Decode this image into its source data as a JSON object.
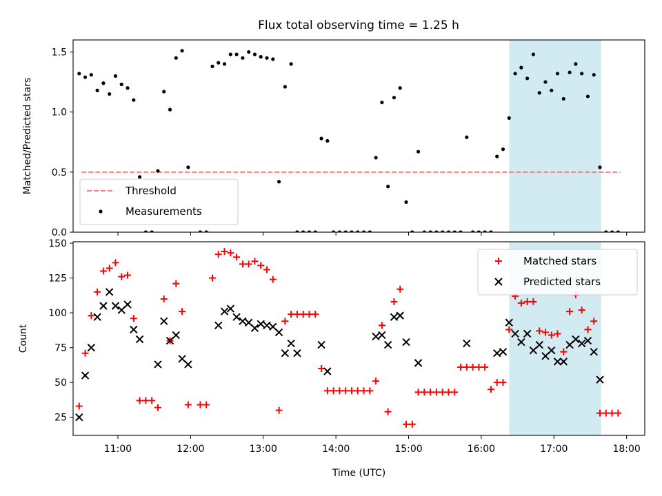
{
  "title": "Flux total observing time = 1.25 h",
  "colors": {
    "threshold": "#f08080",
    "measurements": "#000000",
    "matched": "#ff0000",
    "predicted": "#000000",
    "shade": "#add8e6"
  },
  "chart_data": [
    {
      "type": "scatter",
      "ylabel": "Matched/Predicted stars",
      "ylim": [
        0,
        1.6
      ],
      "y_ticks": [
        "0.0",
        "0.5",
        "1.0",
        "1.5"
      ],
      "xlim": [
        "10:23",
        "18:15"
      ],
      "shaded_interval": [
        "16:23",
        "17:39"
      ],
      "legend": {
        "position": "lower-left",
        "entries": [
          "Threshold",
          "Measurements"
        ]
      },
      "threshold": {
        "name": "Threshold",
        "y": 0.5,
        "x_start": "10:30",
        "x_end": "17:55"
      },
      "series": [
        {
          "name": "Measurements",
          "points": [
            [
              "10:28",
              1.32
            ],
            [
              "10:33",
              1.29
            ],
            [
              "10:38",
              1.31
            ],
            [
              "10:43",
              1.18
            ],
            [
              "10:48",
              1.24
            ],
            [
              "10:53",
              1.15
            ],
            [
              "10:58",
              1.3
            ],
            [
              "11:03",
              1.23
            ],
            [
              "11:08",
              1.2
            ],
            [
              "11:13",
              1.1
            ],
            [
              "11:18",
              0.46
            ],
            [
              "11:23",
              0.0
            ],
            [
              "11:28",
              0.0
            ],
            [
              "11:33",
              0.51
            ],
            [
              "11:38",
              1.17
            ],
            [
              "11:43",
              1.02
            ],
            [
              "11:48",
              1.45
            ],
            [
              "11:53",
              1.51
            ],
            [
              "11:58",
              0.54
            ],
            [
              "12:08",
              0.0
            ],
            [
              "12:13",
              0.0
            ],
            [
              "12:18",
              1.38
            ],
            [
              "12:23",
              1.41
            ],
            [
              "12:28",
              1.4
            ],
            [
              "12:33",
              1.48
            ],
            [
              "12:38",
              1.48
            ],
            [
              "12:43",
              1.45
            ],
            [
              "12:48",
              1.5
            ],
            [
              "12:53",
              1.48
            ],
            [
              "12:58",
              1.46
            ],
            [
              "13:03",
              1.45
            ],
            [
              "13:08",
              1.44
            ],
            [
              "13:13",
              0.42
            ],
            [
              "13:18",
              1.21
            ],
            [
              "13:23",
              1.4
            ],
            [
              "13:28",
              0.0
            ],
            [
              "13:33",
              0.0
            ],
            [
              "13:38",
              0.0
            ],
            [
              "13:43",
              0.0
            ],
            [
              "13:48",
              0.78
            ],
            [
              "13:53",
              0.76
            ],
            [
              "13:58",
              0.0
            ],
            [
              "14:03",
              0.0
            ],
            [
              "14:08",
              0.0
            ],
            [
              "14:13",
              0.0
            ],
            [
              "14:18",
              0.0
            ],
            [
              "14:23",
              0.0
            ],
            [
              "14:28",
              0.0
            ],
            [
              "14:33",
              0.62
            ],
            [
              "14:38",
              1.08
            ],
            [
              "14:43",
              0.38
            ],
            [
              "14:48",
              1.12
            ],
            [
              "14:53",
              1.2
            ],
            [
              "14:58",
              0.25
            ],
            [
              "15:03",
              0.0
            ],
            [
              "15:08",
              0.67
            ],
            [
              "15:13",
              0.0
            ],
            [
              "15:18",
              0.0
            ],
            [
              "15:23",
              0.0
            ],
            [
              "15:28",
              0.0
            ],
            [
              "15:33",
              0.0
            ],
            [
              "15:38",
              0.0
            ],
            [
              "15:43",
              0.0
            ],
            [
              "15:48",
              0.79
            ],
            [
              "15:53",
              0.0
            ],
            [
              "15:58",
              0.0
            ],
            [
              "16:03",
              0.0
            ],
            [
              "16:08",
              0.0
            ],
            [
              "16:13",
              0.63
            ],
            [
              "16:18",
              0.69
            ],
            [
              "16:23",
              0.95
            ],
            [
              "16:28",
              1.32
            ],
            [
              "16:33",
              1.37
            ],
            [
              "16:38",
              1.28
            ],
            [
              "16:43",
              1.48
            ],
            [
              "16:48",
              1.16
            ],
            [
              "16:53",
              1.25
            ],
            [
              "16:58",
              1.18
            ],
            [
              "17:03",
              1.32
            ],
            [
              "17:08",
              1.11
            ],
            [
              "17:13",
              1.33
            ],
            [
              "17:18",
              1.4
            ],
            [
              "17:23",
              1.32
            ],
            [
              "17:28",
              1.13
            ],
            [
              "17:33",
              1.31
            ],
            [
              "17:38",
              0.54
            ],
            [
              "17:43",
              0.0
            ],
            [
              "17:48",
              0.0
            ],
            [
              "17:53",
              0.0
            ]
          ]
        }
      ]
    },
    {
      "type": "scatter",
      "xlabel": "Time (UTC)",
      "ylabel": "Count",
      "ylim": [
        12,
        151
      ],
      "y_ticks": [
        "25",
        "50",
        "75",
        "100",
        "125",
        "150"
      ],
      "x_ticks": [
        "11:00",
        "12:00",
        "13:00",
        "14:00",
        "15:00",
        "16:00",
        "17:00",
        "18:00"
      ],
      "xlim": [
        "10:23",
        "18:15"
      ],
      "shaded_interval": [
        "16:23",
        "17:39"
      ],
      "legend": {
        "position": "top-right",
        "entries": [
          "Matched stars",
          "Predicted stars"
        ]
      },
      "series": [
        {
          "name": "Matched stars",
          "marker": "+",
          "points": [
            [
              "10:28",
              33
            ],
            [
              "10:33",
              71
            ],
            [
              "10:38",
              98
            ],
            [
              "10:43",
              115
            ],
            [
              "10:48",
              130
            ],
            [
              "10:53",
              132
            ],
            [
              "10:58",
              136
            ],
            [
              "11:03",
              126
            ],
            [
              "11:08",
              127
            ],
            [
              "11:13",
              96
            ],
            [
              "11:18",
              37
            ],
            [
              "11:23",
              37
            ],
            [
              "11:28",
              37
            ],
            [
              "11:33",
              32
            ],
            [
              "11:38",
              110
            ],
            [
              "11:43",
              80
            ],
            [
              "11:48",
              121
            ],
            [
              "11:53",
              101
            ],
            [
              "11:58",
              34
            ],
            [
              "12:08",
              34
            ],
            [
              "12:13",
              34
            ],
            [
              "12:18",
              125
            ],
            [
              "12:23",
              142
            ],
            [
              "12:28",
              144
            ],
            [
              "12:33",
              143
            ],
            [
              "12:38",
              140
            ],
            [
              "12:43",
              135
            ],
            [
              "12:48",
              135
            ],
            [
              "12:53",
              137
            ],
            [
              "12:58",
              134
            ],
            [
              "13:03",
              131
            ],
            [
              "13:08",
              124
            ],
            [
              "13:13",
              30
            ],
            [
              "13:18",
              94
            ],
            [
              "13:23",
              99
            ],
            [
              "13:28",
              99
            ],
            [
              "13:33",
              99
            ],
            [
              "13:38",
              99
            ],
            [
              "13:43",
              99
            ],
            [
              "13:48",
              60
            ],
            [
              "13:53",
              44
            ],
            [
              "13:58",
              44
            ],
            [
              "14:03",
              44
            ],
            [
              "14:08",
              44
            ],
            [
              "14:13",
              44
            ],
            [
              "14:18",
              44
            ],
            [
              "14:23",
              44
            ],
            [
              "14:28",
              44
            ],
            [
              "14:33",
              51
            ],
            [
              "14:38",
              91
            ],
            [
              "14:43",
              29
            ],
            [
              "14:48",
              108
            ],
            [
              "14:53",
              117
            ],
            [
              "14:58",
              20
            ],
            [
              "15:03",
              20
            ],
            [
              "15:08",
              43
            ],
            [
              "15:13",
              43
            ],
            [
              "15:18",
              43
            ],
            [
              "15:23",
              43
            ],
            [
              "15:28",
              43
            ],
            [
              "15:33",
              43
            ],
            [
              "15:38",
              43
            ],
            [
              "15:43",
              61
            ],
            [
              "15:48",
              61
            ],
            [
              "15:53",
              61
            ],
            [
              "15:58",
              61
            ],
            [
              "16:03",
              61
            ],
            [
              "16:08",
              45
            ],
            [
              "16:13",
              50
            ],
            [
              "16:18",
              50
            ],
            [
              "16:23",
              88
            ],
            [
              "16:28",
              112
            ],
            [
              "16:33",
              107
            ],
            [
              "16:38",
              108
            ],
            [
              "16:43",
              108
            ],
            [
              "16:48",
              87
            ],
            [
              "16:53",
              86
            ],
            [
              "16:58",
              84
            ],
            [
              "17:03",
              85
            ],
            [
              "17:08",
              72
            ],
            [
              "17:13",
              101
            ],
            [
              "17:18",
              113
            ],
            [
              "17:23",
              102
            ],
            [
              "17:28",
              88
            ],
            [
              "17:33",
              94
            ],
            [
              "17:38",
              28
            ],
            [
              "17:43",
              28
            ],
            [
              "17:48",
              28
            ],
            [
              "17:53",
              28
            ]
          ]
        },
        {
          "name": "Predicted stars",
          "marker": "x",
          "points": [
            [
              "10:28",
              25
            ],
            [
              "10:33",
              55
            ],
            [
              "10:38",
              75
            ],
            [
              "10:43",
              97
            ],
            [
              "10:48",
              105
            ],
            [
              "10:53",
              115
            ],
            [
              "10:58",
              105
            ],
            [
              "11:03",
              102
            ],
            [
              "11:08",
              106
            ],
            [
              "11:13",
              88
            ],
            [
              "11:18",
              81
            ],
            [
              "11:33",
              63
            ],
            [
              "11:38",
              94
            ],
            [
              "11:43",
              80
            ],
            [
              "11:48",
              84
            ],
            [
              "11:53",
              67
            ],
            [
              "11:58",
              63
            ],
            [
              "12:23",
              91
            ],
            [
              "12:28",
              101
            ],
            [
              "12:33",
              103
            ],
            [
              "12:38",
              97
            ],
            [
              "12:43",
              94
            ],
            [
              "12:48",
              93
            ],
            [
              "12:53",
              89
            ],
            [
              "12:58",
              92
            ],
            [
              "13:03",
              91
            ],
            [
              "13:08",
              90
            ],
            [
              "13:13",
              86
            ],
            [
              "13:18",
              71
            ],
            [
              "13:23",
              78
            ],
            [
              "13:28",
              71
            ],
            [
              "13:48",
              77
            ],
            [
              "13:53",
              58
            ],
            [
              "14:33",
              83
            ],
            [
              "14:38",
              84
            ],
            [
              "14:43",
              77
            ],
            [
              "14:48",
              97
            ],
            [
              "14:53",
              98
            ],
            [
              "14:58",
              79
            ],
            [
              "15:08",
              64
            ],
            [
              "15:48",
              78
            ],
            [
              "16:13",
              71
            ],
            [
              "16:18",
              72
            ],
            [
              "16:23",
              93
            ],
            [
              "16:28",
              85
            ],
            [
              "16:33",
              79
            ],
            [
              "16:38",
              85
            ],
            [
              "16:43",
              73
            ],
            [
              "16:48",
              77
            ],
            [
              "16:53",
              69
            ],
            [
              "16:58",
              73
            ],
            [
              "17:03",
              65
            ],
            [
              "17:08",
              65
            ],
            [
              "17:13",
              77
            ],
            [
              "17:18",
              81
            ],
            [
              "17:23",
              78
            ],
            [
              "17:28",
              80
            ],
            [
              "17:33",
              72
            ],
            [
              "17:38",
              52
            ]
          ]
        }
      ]
    }
  ]
}
